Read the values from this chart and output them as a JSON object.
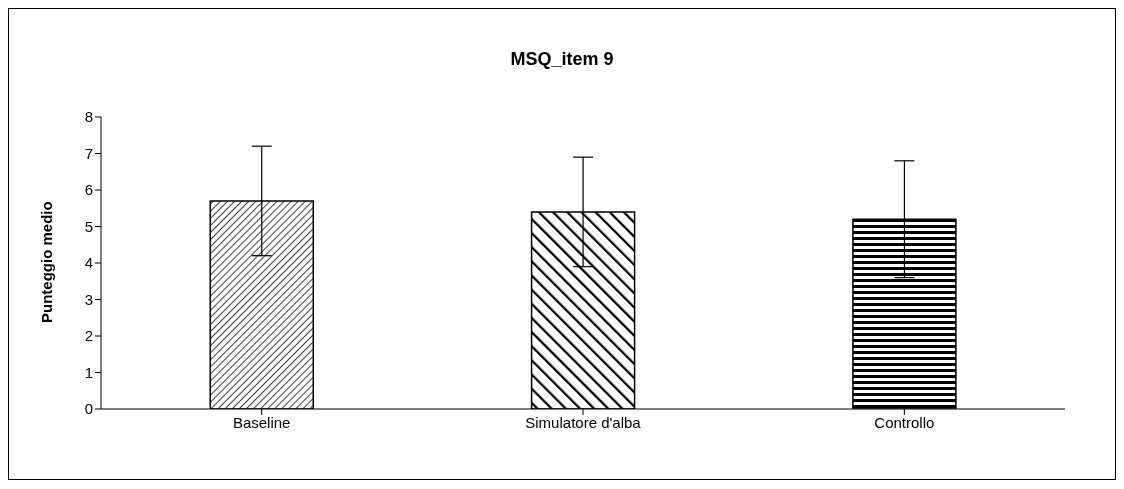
{
  "chart_data": {
    "type": "bar",
    "title": "MSQ_item 9",
    "ylabel": "Punteggio medio",
    "categories": [
      "Baseline",
      "Simulatore d'alba",
      "Controllo"
    ],
    "values": [
      5.7,
      5.4,
      5.2
    ],
    "errors": [
      1.5,
      1.5,
      1.6
    ],
    "colors": [
      "#000000",
      "#000000",
      "#000000"
    ],
    "ylim": [
      0,
      8
    ],
    "yticks": [
      0,
      1,
      2,
      3,
      4,
      5,
      6,
      7,
      8
    ],
    "grid": false,
    "legend": false
  }
}
